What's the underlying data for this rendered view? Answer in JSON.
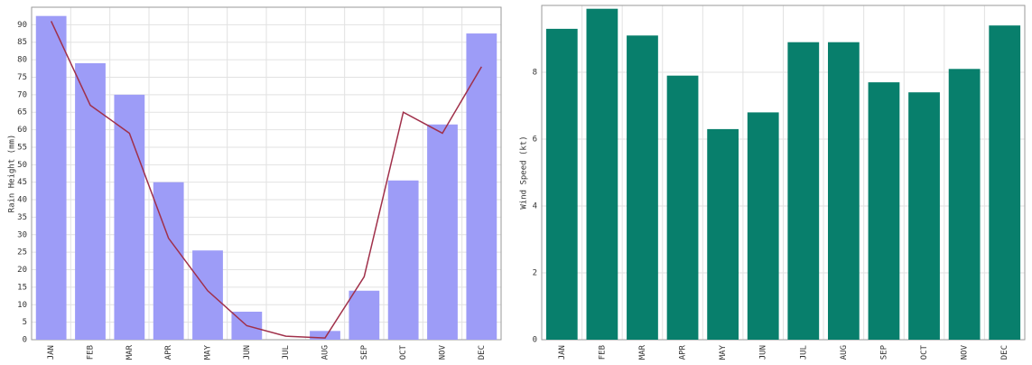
{
  "chart_data": [
    {
      "type": "bar",
      "ylabel": "Rain Height (mm)",
      "categories": [
        "JAN",
        "FEB",
        "MAR",
        "APR",
        "MAY",
        "JUN",
        "JUL",
        "AUG",
        "SEP",
        "OCT",
        "NOV",
        "DEC"
      ],
      "series": [
        {
          "type": "bar",
          "color": "#9d9cf7",
          "values": [
            92.5,
            79,
            70,
            45,
            25.5,
            8,
            0,
            2.5,
            14,
            45.5,
            61.5,
            87.5
          ]
        },
        {
          "type": "line",
          "color": "#a0304a",
          "values": [
            91,
            67,
            59,
            29,
            14,
            4,
            1,
            0.5,
            18,
            65,
            59,
            78
          ]
        }
      ],
      "ylim": [
        0,
        95
      ],
      "yticks": [
        0,
        5,
        10,
        15,
        20,
        25,
        30,
        35,
        40,
        45,
        50,
        55,
        60,
        65,
        70,
        75,
        80,
        85,
        90
      ],
      "grid": true
    },
    {
      "type": "bar",
      "ylabel": "Wind Speed (kt)",
      "categories": [
        "JAN",
        "FEB",
        "MAR",
        "APR",
        "MAY",
        "JUN",
        "JUL",
        "AUG",
        "SEP",
        "OCT",
        "NOV",
        "DEC"
      ],
      "series": [
        {
          "type": "bar",
          "color": "#087f6c",
          "values": [
            9.3,
            9.9,
            9.1,
            7.9,
            6.3,
            6.8,
            8.9,
            8.9,
            7.7,
            7.4,
            8.1,
            9.4
          ]
        }
      ],
      "ylim": [
        0,
        10
      ],
      "yticks": [
        0,
        2,
        4,
        6,
        8
      ],
      "grid": true
    }
  ]
}
